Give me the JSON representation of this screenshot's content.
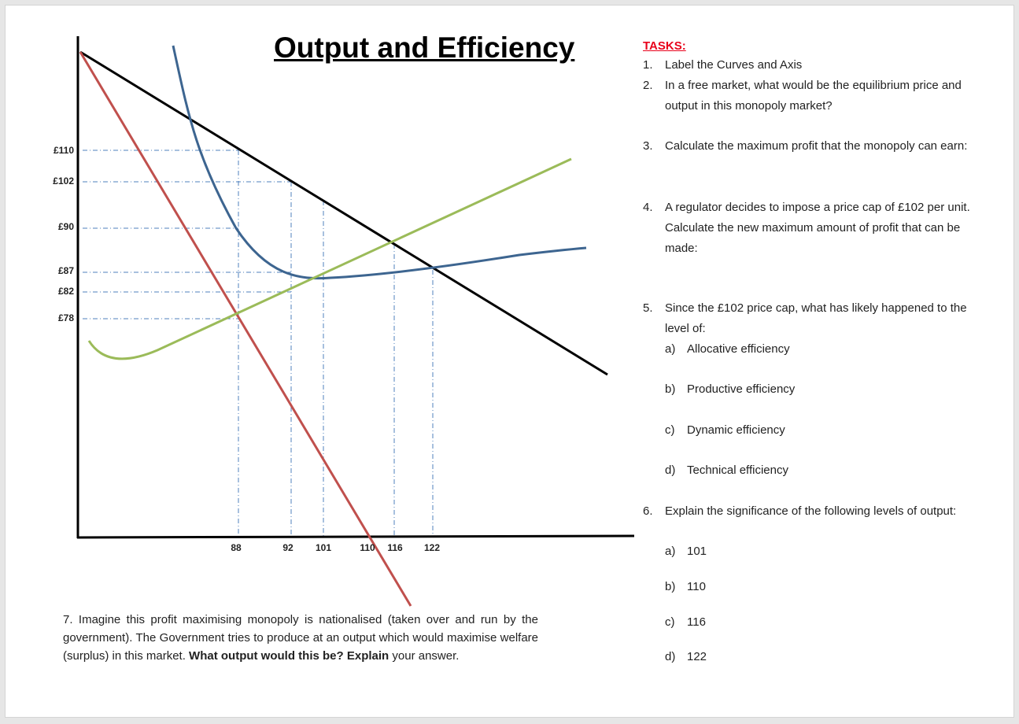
{
  "title": "Output and Efficiency",
  "colors": {
    "demand": "#000000",
    "mr": "#c0504d",
    "ac": "#3d6590",
    "mc": "#9bbb59",
    "guide": "#4f81bd",
    "tasks_heading": "#e8001a"
  },
  "diagram": {
    "price_labels": [
      "£110",
      "£102",
      "£90",
      "£87",
      "£82",
      "£78"
    ],
    "output_labels": [
      "88",
      "92",
      "101",
      "110",
      "116",
      "122"
    ]
  },
  "tasks": {
    "heading": "TASKS:",
    "items": [
      {
        "num": "1.",
        "text": "Label the Curves and Axis"
      },
      {
        "num": "2.",
        "text": "In a free market, what would be the equilibrium price and output in this monopoly market?"
      },
      {
        "num": "3.",
        "text": "Calculate the maximum profit that the monopoly can earn:"
      },
      {
        "num": "4.",
        "text": "A regulator decides to impose a price cap of £102 per unit. Calculate the new maximum amount of profit that can be made:"
      },
      {
        "num": "5.",
        "text": "Since the £102 price cap, what has likely happened to the level of:"
      },
      {
        "num": "6.",
        "text": "Explain the significance of the following levels of output:"
      }
    ],
    "q5_subs": [
      {
        "num": "a)",
        "text": "Allocative efficiency"
      },
      {
        "num": "b)",
        "text": "Productive efficiency"
      },
      {
        "num": "c)",
        "text": "Dynamic efficiency"
      },
      {
        "num": "d)",
        "text": "Technical efficiency"
      }
    ],
    "q6_subs": [
      {
        "num": "a)",
        "text": "101"
      },
      {
        "num": "b)",
        "text": "110"
      },
      {
        "num": "c)",
        "text": "116"
      },
      {
        "num": "d)",
        "text": "122"
      }
    ]
  },
  "q7": {
    "intro": "7. Imagine this profit maximising monopoly is nationalised (taken over and run by the government). The Government tries to produce at an output which would maximise welfare (surplus) in this market.",
    "bold1": "What output would this be?",
    "bold2": "Explain",
    "end": "your answer."
  }
}
